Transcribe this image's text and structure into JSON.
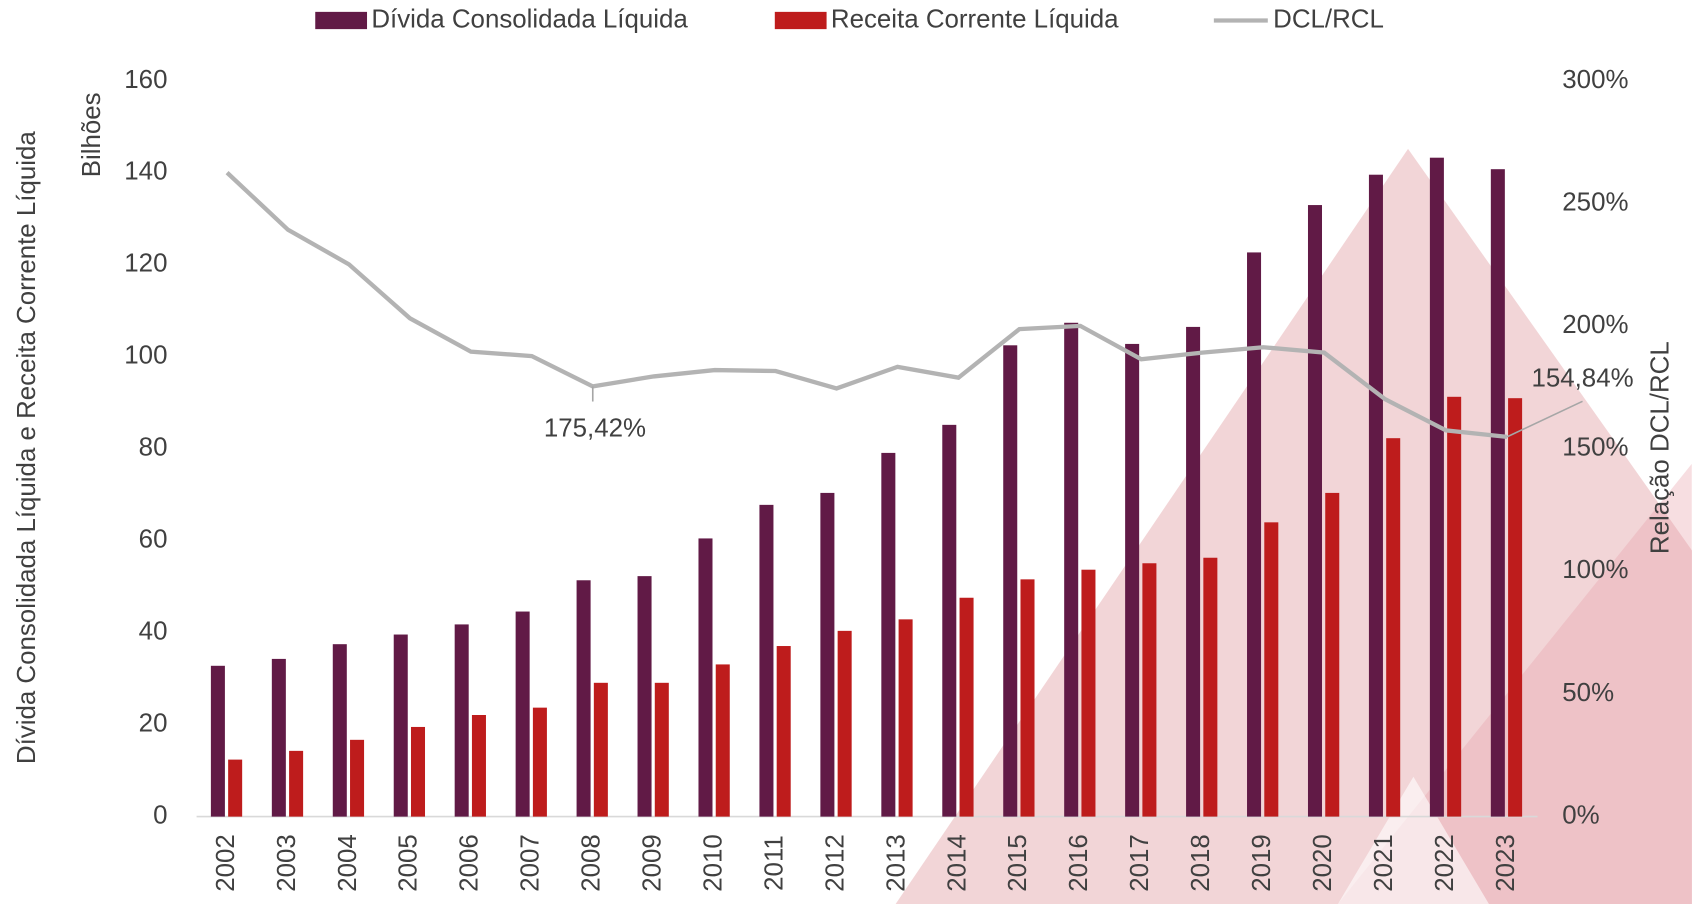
{
  "chart_data": {
    "type": "bar",
    "categories": [
      "2002",
      "2003",
      "2004",
      "2005",
      "2006",
      "2007",
      "2008",
      "2009",
      "2010",
      "2011",
      "2012",
      "2013",
      "2014",
      "2015",
      "2016",
      "2017",
      "2018",
      "2019",
      "2020",
      "2021",
      "2022",
      "2023"
    ],
    "y_label_top": "Bilhões",
    "y_label": "Dívida Consolidada Líquida e Receita Corrente Líquida",
    "y2_label": "Relação DCL/RCL",
    "ylim": [
      0,
      160
    ],
    "yticks": [
      0,
      20,
      40,
      60,
      80,
      100,
      120,
      140,
      160
    ],
    "y2lim": [
      0,
      300
    ],
    "y2ticks": [
      {
        "value": 0,
        "label": "0%"
      },
      {
        "value": 50,
        "label": "50%"
      },
      {
        "value": 100,
        "label": "100%"
      },
      {
        "value": 150,
        "label": "150%"
      },
      {
        "value": 200,
        "label": "200%"
      },
      {
        "value": 250,
        "label": "250%"
      },
      {
        "value": 300,
        "label": "300%"
      }
    ],
    "legend": "top",
    "series": [
      {
        "name": "Dívida Consolidada Líquida",
        "color": "#611a46",
        "type": "bar",
        "values": [
          32.8,
          34.3,
          37.5,
          39.6,
          41.8,
          44.6,
          51.4,
          52.3,
          60.5,
          67.8,
          70.4,
          79.1,
          85.2,
          102.5,
          107.4,
          102.8,
          106.5,
          122.7,
          133.0,
          139.6,
          143.3,
          140.8
        ]
      },
      {
        "name": "Receita  Corrente Líquida",
        "color": "#be1c1c",
        "type": "bar",
        "values": [
          12.4,
          14.3,
          16.7,
          19.5,
          22.1,
          23.7,
          29.1,
          29.1,
          33.1,
          37.1,
          40.4,
          42.9,
          47.6,
          51.6,
          53.7,
          55.1,
          56.3,
          64.0,
          70.4,
          82.3,
          91.3,
          91.0
        ]
      },
      {
        "name": "DCL/RCL",
        "color": "#b3b3b3",
        "type": "line",
        "axis": "y2",
        "values": [
          262.6,
          239.3,
          225.2,
          203.2,
          189.6,
          187.8,
          175.42,
          179.5,
          182.1,
          181.7,
          174.6,
          183.4,
          179.0,
          198.8,
          200.1,
          186.5,
          189.2,
          191.4,
          189.2,
          170.2,
          157.5,
          154.84
        ],
        "value_labels": [
          null,
          null,
          null,
          null,
          null,
          null,
          "175,42%",
          null,
          null,
          null,
          null,
          null,
          null,
          null,
          null,
          null,
          null,
          null,
          null,
          null,
          null,
          "154,84%"
        ]
      }
    ]
  }
}
